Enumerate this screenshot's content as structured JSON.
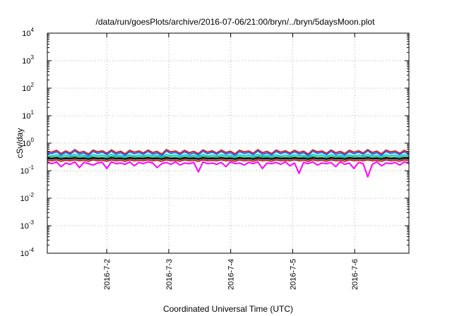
{
  "chart_data": {
    "type": "line",
    "title": "/data/run/goesPlots/archive/2016-07-06/21:00/bryn/../bryn/5daysMoon.plot",
    "xlabel": "Coordinated Universal Time (UTC)",
    "ylabel": "cSv/day",
    "yscale": "log",
    "ylim": [
      0.0001,
      10000
    ],
    "xlim": [
      "2016-07-01 01:00",
      "2016-07-06 21:00"
    ],
    "grid": true,
    "x_ticks": [
      "2016-7-2",
      "2016-7-3",
      "2016-7-4",
      "2016-7-5",
      "2016-7-6"
    ],
    "y_ticks": [
      {
        "base": "10",
        "exp": "4"
      },
      {
        "base": "10",
        "exp": "3"
      },
      {
        "base": "10",
        "exp": "2"
      },
      {
        "base": "10",
        "exp": "1"
      },
      {
        "base": "10",
        "exp": "0"
      },
      {
        "base": "10",
        "exp": "-1"
      },
      {
        "base": "10",
        "exp": "-2"
      },
      {
        "base": "10",
        "exp": "-3"
      },
      {
        "base": "10",
        "exp": "-4"
      }
    ],
    "series": [
      {
        "color": "#e41a1c",
        "level": 0.5,
        "values": [
          0.5,
          0.47,
          0.55,
          0.42,
          0.52,
          0.44,
          0.58,
          0.46,
          0.5,
          0.4,
          0.56,
          0.48,
          0.53,
          0.43,
          0.57,
          0.45,
          0.51,
          0.41,
          0.55,
          0.47,
          0.52,
          0.44,
          0.56,
          0.46,
          0.5,
          0.4,
          0.58,
          0.48,
          0.52,
          0.43,
          0.55,
          0.45,
          0.5,
          0.42,
          0.57,
          0.47,
          0.53,
          0.44,
          0.56,
          0.46,
          0.51,
          0.41,
          0.55,
          0.48,
          0.52,
          0.43,
          0.58,
          0.45,
          0.5,
          0.42,
          0.56,
          0.47,
          0.53,
          0.44,
          0.55,
          0.46,
          0.51,
          0.4,
          0.57,
          0.48,
          0.52,
          0.43,
          0.56,
          0.45,
          0.5,
          0.42,
          0.55,
          0.47,
          0.53,
          0.44,
          0.58,
          0.46,
          0.51,
          0.41,
          0.56,
          0.48,
          0.52,
          0.43,
          0.55,
          0.45
        ]
      },
      {
        "color": "#1f6fff",
        "level": 0.44,
        "values": [
          0.45,
          0.41,
          0.49,
          0.37,
          0.46,
          0.39,
          0.52,
          0.4,
          0.44,
          0.35,
          0.5,
          0.42,
          0.47,
          0.38,
          0.51,
          0.39,
          0.45,
          0.36,
          0.49,
          0.41,
          0.46,
          0.39,
          0.5,
          0.4,
          0.44,
          0.35,
          0.52,
          0.42,
          0.46,
          0.38,
          0.49,
          0.39,
          0.44,
          0.37,
          0.51,
          0.41,
          0.47,
          0.39,
          0.5,
          0.4,
          0.45,
          0.36,
          0.49,
          0.42,
          0.46,
          0.38,
          0.52,
          0.39,
          0.44,
          0.37,
          0.5,
          0.41,
          0.47,
          0.39,
          0.49,
          0.4,
          0.45,
          0.35,
          0.51,
          0.42,
          0.46,
          0.38,
          0.5,
          0.39,
          0.44,
          0.37,
          0.49,
          0.41,
          0.47,
          0.39,
          0.52,
          0.4,
          0.45,
          0.36,
          0.5,
          0.42,
          0.46,
          0.38,
          0.49,
          0.39
        ]
      },
      {
        "color": "#00d0d0",
        "level": 0.36,
        "values": [
          0.36,
          0.34,
          0.38,
          0.33,
          0.37,
          0.34,
          0.39,
          0.35,
          0.36,
          0.32,
          0.38,
          0.35,
          0.37,
          0.33,
          0.39,
          0.34,
          0.36,
          0.33,
          0.38,
          0.34,
          0.37,
          0.34,
          0.38,
          0.35,
          0.36,
          0.32,
          0.39,
          0.35,
          0.37,
          0.33,
          0.38,
          0.34,
          0.36,
          0.33,
          0.39,
          0.34,
          0.37,
          0.34,
          0.38,
          0.35,
          0.36,
          0.33,
          0.38,
          0.35,
          0.37,
          0.33,
          0.39,
          0.34,
          0.36,
          0.33,
          0.38,
          0.34,
          0.37,
          0.34,
          0.38,
          0.35,
          0.36,
          0.32,
          0.39,
          0.35,
          0.37,
          0.33,
          0.38,
          0.34,
          0.36,
          0.33,
          0.38,
          0.34,
          0.37,
          0.34,
          0.39,
          0.35,
          0.36,
          0.33,
          0.38,
          0.35,
          0.37,
          0.33,
          0.38,
          0.34
        ]
      },
      {
        "color": "#2e8b57",
        "level": 0.31,
        "values": [
          0.31,
          0.3,
          0.32,
          0.29,
          0.31,
          0.3,
          0.33,
          0.3,
          0.31,
          0.29,
          0.32,
          0.3,
          0.31,
          0.29,
          0.33,
          0.3,
          0.31,
          0.29,
          0.32,
          0.3,
          0.31,
          0.3,
          0.32,
          0.3,
          0.31,
          0.29,
          0.33,
          0.3,
          0.31,
          0.29,
          0.32,
          0.3,
          0.31,
          0.29,
          0.33,
          0.3,
          0.31,
          0.3,
          0.32,
          0.3,
          0.31,
          0.29,
          0.32,
          0.3,
          0.31,
          0.29,
          0.33,
          0.3,
          0.31,
          0.29,
          0.32,
          0.3,
          0.31,
          0.3,
          0.32,
          0.3,
          0.31,
          0.29,
          0.33,
          0.3,
          0.31,
          0.29,
          0.32,
          0.3,
          0.31,
          0.29,
          0.32,
          0.3,
          0.31,
          0.3,
          0.33,
          0.3,
          0.31,
          0.29,
          0.32,
          0.3,
          0.31,
          0.29,
          0.32,
          0.3
        ]
      },
      {
        "color": "#000000",
        "level": 0.28,
        "values": [
          0.28,
          0.27,
          0.29,
          0.26,
          0.28,
          0.27,
          0.29,
          0.27,
          0.28,
          0.26,
          0.29,
          0.27,
          0.28,
          0.26,
          0.29,
          0.27,
          0.28,
          0.26,
          0.29,
          0.27,
          0.28,
          0.27,
          0.29,
          0.27,
          0.28,
          0.26,
          0.29,
          0.27,
          0.28,
          0.26,
          0.29,
          0.27,
          0.28,
          0.26,
          0.29,
          0.27,
          0.28,
          0.27,
          0.29,
          0.27,
          0.28,
          0.26,
          0.29,
          0.27,
          0.28,
          0.26,
          0.29,
          0.27,
          0.28,
          0.26,
          0.29,
          0.27,
          0.28,
          0.27,
          0.29,
          0.27,
          0.28,
          0.26,
          0.29,
          0.27,
          0.28,
          0.26,
          0.29,
          0.27,
          0.28,
          0.26,
          0.29,
          0.27,
          0.28,
          0.27,
          0.29,
          0.27,
          0.28,
          0.26,
          0.29,
          0.27,
          0.28,
          0.26,
          0.29,
          0.27
        ]
      },
      {
        "color": "#b22222",
        "level": 0.24,
        "values": [
          0.24,
          0.23,
          0.25,
          0.22,
          0.24,
          0.23,
          0.25,
          0.23,
          0.24,
          0.22,
          0.25,
          0.23,
          0.24,
          0.22,
          0.25,
          0.23,
          0.24,
          0.22,
          0.25,
          0.23,
          0.24,
          0.23,
          0.25,
          0.23,
          0.24,
          0.22,
          0.25,
          0.23,
          0.24,
          0.22,
          0.25,
          0.23,
          0.24,
          0.22,
          0.25,
          0.23,
          0.24,
          0.23,
          0.25,
          0.23,
          0.24,
          0.22,
          0.25,
          0.23,
          0.24,
          0.22,
          0.25,
          0.23,
          0.24,
          0.22,
          0.25,
          0.23,
          0.24,
          0.23,
          0.25,
          0.23,
          0.24,
          0.22,
          0.25,
          0.23,
          0.24,
          0.22,
          0.25,
          0.23,
          0.24,
          0.22,
          0.25,
          0.23,
          0.24,
          0.23,
          0.25,
          0.23,
          0.24,
          0.22,
          0.25,
          0.23,
          0.24,
          0.22,
          0.25,
          0.23
        ]
      },
      {
        "color": "#ff00ff",
        "level": 0.19,
        "values": [
          0.2,
          0.18,
          0.21,
          0.14,
          0.19,
          0.17,
          0.21,
          0.13,
          0.2,
          0.18,
          0.16,
          0.19,
          0.2,
          0.12,
          0.21,
          0.18,
          0.19,
          0.17,
          0.21,
          0.15,
          0.2,
          0.18,
          0.21,
          0.19,
          0.13,
          0.18,
          0.2,
          0.17,
          0.21,
          0.16,
          0.19,
          0.18,
          0.2,
          0.09,
          0.21,
          0.18,
          0.19,
          0.17,
          0.2,
          0.14,
          0.21,
          0.18,
          0.19,
          0.16,
          0.2,
          0.18,
          0.21,
          0.12,
          0.19,
          0.18,
          0.2,
          0.17,
          0.21,
          0.15,
          0.19,
          0.08,
          0.2,
          0.18,
          0.21,
          0.16,
          0.19,
          0.18,
          0.2,
          0.14,
          0.21,
          0.17,
          0.19,
          0.12,
          0.2,
          0.18,
          0.06,
          0.17,
          0.21,
          0.15,
          0.19,
          0.18,
          0.2,
          0.16,
          0.21,
          0.18
        ]
      }
    ]
  }
}
